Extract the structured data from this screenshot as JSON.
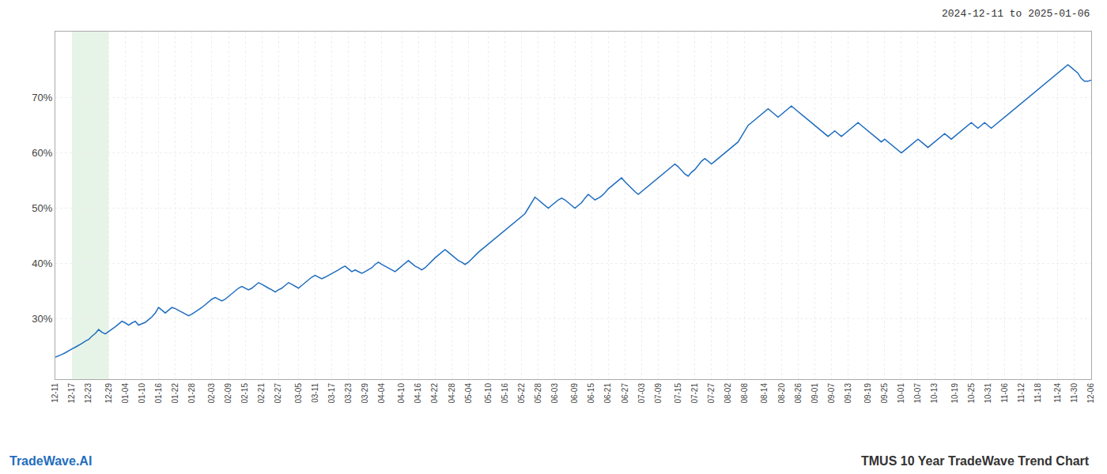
{
  "chart_data": {
    "type": "line",
    "annotations": [
      {
        "text": "2024-12-11 to 2025-01-06"
      },
      {
        "text": "TradeWave.AI",
        "color": "#1f6dbf"
      },
      {
        "text": "TMUS 10 Year TradeWave Trend Chart"
      }
    ],
    "categories": [
      "12-11",
      null,
      null,
      null,
      null,
      "12-17",
      null,
      null,
      null,
      null,
      "12-23",
      null,
      null,
      null,
      null,
      null,
      "12-29",
      null,
      null,
      null,
      null,
      "01-04",
      null,
      null,
      null,
      null,
      "01-10",
      null,
      null,
      null,
      null,
      "01-16",
      null,
      null,
      null,
      null,
      "01-22",
      null,
      null,
      null,
      null,
      "01-28",
      null,
      null,
      null,
      null,
      null,
      "02-03",
      null,
      null,
      null,
      null,
      "02-09",
      null,
      null,
      null,
      null,
      "02-15",
      null,
      null,
      null,
      null,
      "02-21",
      null,
      null,
      null,
      null,
      "02-27",
      null,
      null,
      null,
      null,
      null,
      "03-05",
      null,
      null,
      null,
      null,
      "03-11",
      null,
      null,
      null,
      null,
      "03-17",
      null,
      null,
      null,
      null,
      "03-23",
      null,
      null,
      null,
      null,
      "03-29",
      null,
      null,
      null,
      null,
      "04-04",
      null,
      null,
      null,
      null,
      null,
      "04-10",
      null,
      null,
      null,
      null,
      "04-16",
      null,
      null,
      null,
      null,
      "04-22",
      null,
      null,
      null,
      null,
      "04-28",
      null,
      null,
      null,
      null,
      "05-04",
      null,
      null,
      null,
      null,
      null,
      "05-10",
      null,
      null,
      null,
      null,
      "05-16",
      null,
      null,
      null,
      null,
      "05-22",
      null,
      null,
      null,
      null,
      "05-28",
      null,
      null,
      null,
      null,
      "06-03",
      null,
      null,
      null,
      null,
      null,
      "06-09",
      null,
      null,
      null,
      null,
      "06-15",
      null,
      null,
      null,
      null,
      "06-21",
      null,
      null,
      null,
      null,
      "06-27",
      null,
      null,
      null,
      null,
      "07-03",
      null,
      null,
      null,
      null,
      "07-09",
      null,
      null,
      null,
      null,
      null,
      "07-15",
      null,
      null,
      null,
      null,
      "07-21",
      null,
      null,
      null,
      null,
      "07-27",
      null,
      null,
      null,
      null,
      "08-02",
      null,
      null,
      null,
      null,
      "08-08",
      null,
      null,
      null,
      null,
      null,
      "08-14",
      null,
      null,
      null,
      null,
      "08-20",
      null,
      null,
      null,
      null,
      "08-26",
      null,
      null,
      null,
      null,
      "09-01",
      null,
      null,
      null,
      null,
      "09-07",
      null,
      null,
      null,
      null,
      "09-13",
      null,
      null,
      null,
      null,
      null,
      "09-19",
      null,
      null,
      null,
      null,
      "09-25",
      null,
      null,
      null,
      null,
      "10-01",
      null,
      null,
      null,
      null,
      "10-07",
      null,
      null,
      null,
      null,
      "10-13",
      null,
      null,
      null,
      null,
      null,
      "10-19",
      null,
      null,
      null,
      null,
      "10-25",
      null,
      null,
      null,
      null,
      "10-31",
      null,
      null,
      null,
      null,
      "11-06",
      null,
      null,
      null,
      null,
      "11-12",
      null,
      null,
      null,
      null,
      "11-18",
      null,
      null,
      null,
      null,
      null,
      "11-24",
      null,
      null,
      null,
      null,
      "11-30",
      null,
      null,
      null,
      null,
      "12-06"
    ],
    "values": [
      23.0,
      23.2,
      23.5,
      23.8,
      24.2,
      24.5,
      24.8,
      25.1,
      25.5,
      25.9,
      26.2,
      26.8,
      27.3,
      28.0,
      27.5,
      27.2,
      27.6,
      28.0,
      28.5,
      29.0,
      29.5,
      29.2,
      28.8,
      29.2,
      29.5,
      28.8,
      29.0,
      29.3,
      29.8,
      30.3,
      31.0,
      32.0,
      31.5,
      31.0,
      31.5,
      32.0,
      31.8,
      31.5,
      31.2,
      30.8,
      30.5,
      30.8,
      31.2,
      31.5,
      32.0,
      32.5,
      33.0,
      33.5,
      33.8,
      33.5,
      33.2,
      33.5,
      34.0,
      34.5,
      35.0,
      35.5,
      35.8,
      35.5,
      35.2,
      35.5,
      36.0,
      36.5,
      36.2,
      35.8,
      35.5,
      35.2,
      34.8,
      35.2,
      35.5,
      36.0,
      36.5,
      36.2,
      35.8,
      35.5,
      36.0,
      36.5,
      37.0,
      37.5,
      37.8,
      37.5,
      37.2,
      37.5,
      37.8,
      38.2,
      38.5,
      38.8,
      39.2,
      39.5,
      39.0,
      38.5,
      38.8,
      38.5,
      38.2,
      38.5,
      38.8,
      39.2,
      39.8,
      40.2,
      39.8,
      39.5,
      39.2,
      38.8,
      38.5,
      39.0,
      39.5,
      40.0,
      40.5,
      40.0,
      39.5,
      39.2,
      38.8,
      39.2,
      39.8,
      40.5,
      41.0,
      41.5,
      42.0,
      42.5,
      42.0,
      41.5,
      41.0,
      40.5,
      40.2,
      39.8,
      40.2,
      40.8,
      41.5,
      42.0,
      42.5,
      43.0,
      43.5,
      44.0,
      44.5,
      45.0,
      45.5,
      46.0,
      46.5,
      47.0,
      47.5,
      48.0,
      48.5,
      49.0,
      50.0,
      51.0,
      52.0,
      51.5,
      51.0,
      50.5,
      50.0,
      50.5,
      51.0,
      51.5,
      51.8,
      51.5,
      51.0,
      50.5,
      50.0,
      50.5,
      51.0,
      51.8,
      52.5,
      52.0,
      51.5,
      51.8,
      52.2,
      52.8,
      53.5,
      54.0,
      54.5,
      55.0,
      55.5,
      54.8,
      54.2,
      53.5,
      53.0,
      52.5,
      53.0,
      53.5,
      54.0,
      54.5,
      55.0,
      55.5,
      56.0,
      56.5,
      57.0,
      57.5,
      58.0,
      57.5,
      56.8,
      56.2,
      55.8,
      56.5,
      57.0,
      57.8,
      58.5,
      59.0,
      58.5,
      58.0,
      58.5,
      59.0,
      59.5,
      60.0,
      60.5,
      61.0,
      61.5,
      62.0,
      63.0,
      64.0,
      65.0,
      65.5,
      66.0,
      66.5,
      67.0,
      67.5,
      68.0,
      67.5,
      67.0,
      66.5,
      67.0,
      67.5,
      68.0,
      68.5,
      68.0,
      67.5,
      67.0,
      66.5,
      66.0,
      65.5,
      65.0,
      64.5,
      64.0,
      63.5,
      63.0,
      63.5,
      64.0,
      63.5,
      63.0,
      63.5,
      64.0,
      64.5,
      65.0,
      65.5,
      65.0,
      64.5,
      64.0,
      63.5,
      63.0,
      62.5,
      62.0,
      62.5,
      62.0,
      61.5,
      61.0,
      60.5,
      60.0,
      60.5,
      61.0,
      61.5,
      62.0,
      62.5,
      62.0,
      61.5,
      61.0,
      61.5,
      62.0,
      62.5,
      63.0,
      63.5,
      63.0,
      62.5,
      63.0,
      63.5,
      64.0,
      64.5,
      65.0,
      65.5,
      65.0,
      64.5,
      65.0,
      65.5,
      65.0,
      64.5,
      65.0,
      65.5,
      66.0,
      66.5,
      67.0,
      67.5,
      68.0,
      68.5,
      69.0,
      69.5,
      70.0,
      70.5,
      71.0,
      71.5,
      72.0,
      72.5,
      73.0,
      73.5,
      74.0,
      74.5,
      75.0,
      75.5,
      76.0,
      75.5,
      75.0,
      74.5,
      73.5,
      73.0,
      73.0,
      73.2
    ],
    "color": "#1f6dbf",
    "ylim": [
      19,
      82
    ],
    "yticks": [
      {
        "value": 30,
        "label": "30%"
      },
      {
        "value": 40,
        "label": "40%"
      },
      {
        "value": 50,
        "label": "50%"
      },
      {
        "value": 60,
        "label": "60%"
      },
      {
        "value": 70,
        "label": "70%"
      }
    ],
    "grid": true,
    "highlight": {
      "start": "12-17",
      "end": "12-29",
      "color": "#c8e6c9"
    }
  }
}
